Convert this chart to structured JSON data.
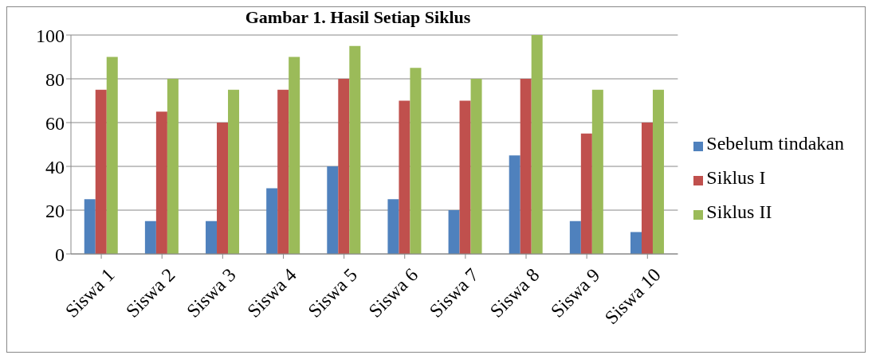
{
  "chart_data": {
    "type": "bar",
    "title": "Gambar 1. Hasil Setiap Siklus",
    "categories": [
      "Siswa 1",
      "Siswa 2",
      "Siswa 3",
      "Siswa 4",
      "Siswa 5",
      "Siswa 6",
      "Siswa 7",
      "Siswa 8",
      "Siswa 9",
      "Siswa 10"
    ],
    "series": [
      {
        "name": "Sebelum tindakan",
        "color": "#4f81bd",
        "values": [
          25,
          15,
          15,
          30,
          40,
          25,
          20,
          45,
          15,
          10
        ]
      },
      {
        "name": "Siklus I",
        "color": "#c0504d",
        "values": [
          75,
          65,
          60,
          75,
          80,
          70,
          70,
          80,
          55,
          60
        ]
      },
      {
        "name": "Siklus II",
        "color": "#9bbb59",
        "values": [
          90,
          80,
          75,
          90,
          95,
          85,
          80,
          100,
          75,
          75
        ]
      }
    ],
    "ylim": [
      0,
      100
    ],
    "yticks": [
      0,
      20,
      40,
      60,
      80,
      100
    ],
    "grid": "y",
    "legend": "right"
  }
}
